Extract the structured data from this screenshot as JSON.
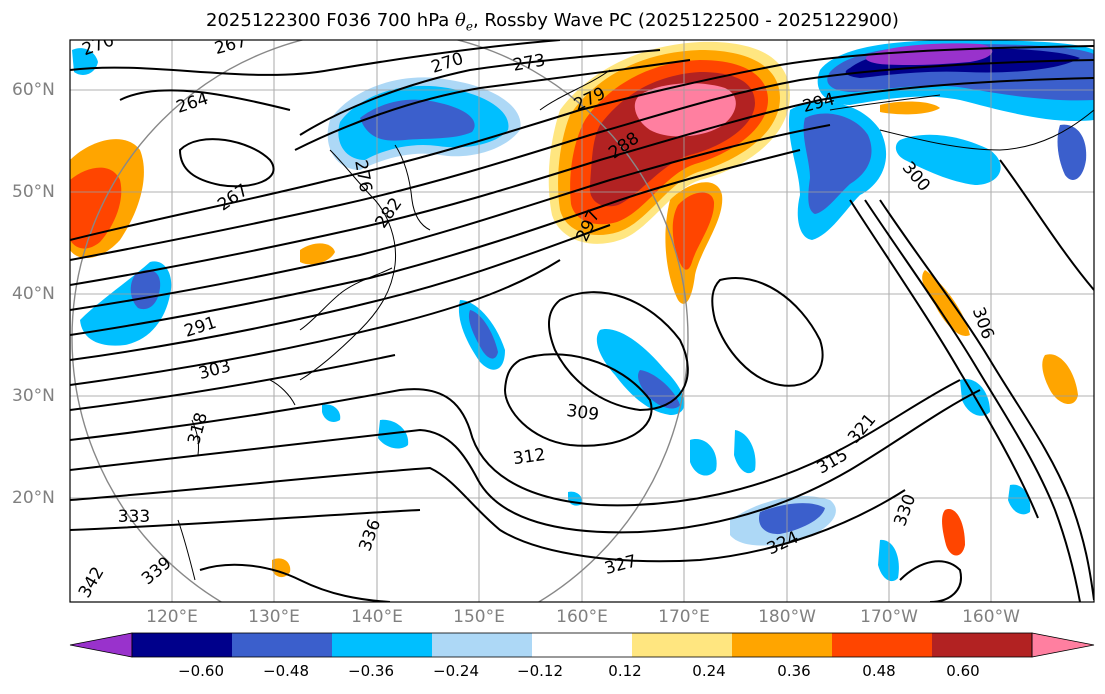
{
  "title": {
    "prefix": "2025122300 F036 700 hPa ",
    "symbol": "θ",
    "subscript": "e",
    "suffix": ", Rossby Wave PC (2025122500 - 2025122900)"
  },
  "map": {
    "lat_labels": [
      "60°N",
      "50°N",
      "40°N",
      "30°N",
      "20°N"
    ],
    "lon_labels": [
      "120°E",
      "130°E",
      "140°E",
      "150°E",
      "160°E",
      "170°E",
      "180°W",
      "170°W",
      "160°W"
    ],
    "contour_labels": [
      "270",
      "267",
      "264",
      "267",
      "270",
      "273",
      "276",
      "279",
      "282",
      "288",
      "291",
      "294",
      "297",
      "300",
      "303",
      "306",
      "309",
      "312",
      "315",
      "318",
      "321",
      "324",
      "327",
      "330",
      "333",
      "336",
      "339",
      "342"
    ],
    "line_color": "#000000",
    "grid_color": "#9e9e9e",
    "coastline_color": "#000000"
  },
  "colorbar": {
    "tick_labels": [
      "−0.60",
      "−0.48",
      "−0.36",
      "−0.24",
      "−0.12",
      "0.12",
      "0.24",
      "0.36",
      "0.48",
      "0.60"
    ],
    "colors": [
      "#9932cc",
      "#00008b",
      "#3b5fcc",
      "#00bfff",
      "#add8f6",
      "#ffffff",
      "#ffe680",
      "#ffa500",
      "#ff4500",
      "#b22222",
      "#ff7fa0"
    ],
    "extend": "both"
  }
}
